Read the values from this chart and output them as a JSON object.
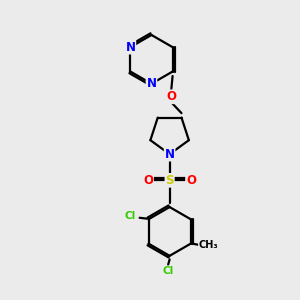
{
  "background_color": "#ebebeb",
  "atom_colors": {
    "C": "#000000",
    "N": "#0000ff",
    "O": "#ff0000",
    "S": "#cccc00",
    "Cl": "#33cc00",
    "H": "#000000"
  },
  "bond_color": "#000000",
  "bond_width": 1.6,
  "font_size_atom": 8.5,
  "font_size_small": 7.5,
  "figsize": [
    3.0,
    3.0
  ],
  "dpi": 100
}
